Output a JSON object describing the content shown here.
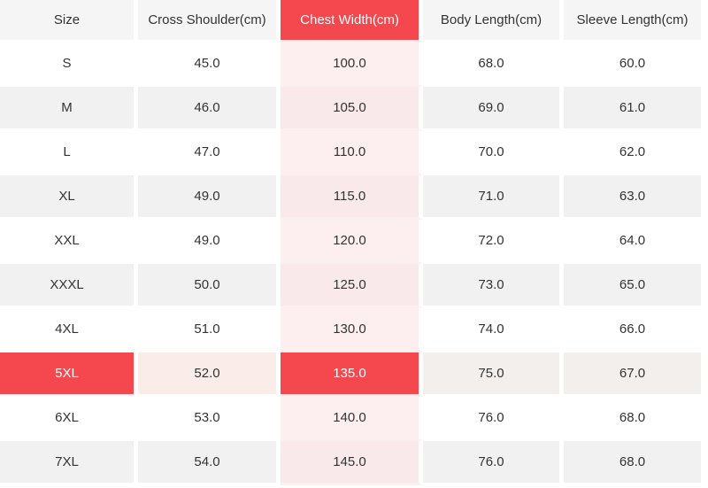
{
  "chart_data": {
    "type": "table",
    "columns": [
      "Size",
      "Cross Shoulder(cm)",
      "Chest Width(cm)",
      "Body Length(cm)",
      "Sleeve Length(cm)"
    ],
    "rows": [
      [
        "S",
        "45.0",
        "100.0",
        "68.0",
        "60.0"
      ],
      [
        "M",
        "46.0",
        "105.0",
        "69.0",
        "61.0"
      ],
      [
        "L",
        "47.0",
        "110.0",
        "70.0",
        "62.0"
      ],
      [
        "XL",
        "49.0",
        "115.0",
        "71.0",
        "63.0"
      ],
      [
        "XXL",
        "49.0",
        "120.0",
        "72.0",
        "64.0"
      ],
      [
        "XXXL",
        "50.0",
        "125.0",
        "73.0",
        "65.0"
      ],
      [
        "4XL",
        "51.0",
        "130.0",
        "74.0",
        "66.0"
      ],
      [
        "5XL",
        "52.0",
        "135.0",
        "75.0",
        "67.0"
      ],
      [
        "6XL",
        "53.0",
        "140.0",
        "76.0",
        "68.0"
      ],
      [
        "7XL",
        "54.0",
        "145.0",
        "76.0",
        "68.0"
      ]
    ],
    "highlighted_column": "Chest Width(cm)",
    "highlighted_column_index": 2,
    "highlighted_row": "5XL",
    "highlighted_row_index": 7
  },
  "colors": {
    "accent_red": "#f4474e",
    "header_bg": "#f5f5f6",
    "stripe_bg": "#f1f1f2",
    "pink_column_bg": "#fdeff0",
    "pink_column_stripe_bg": "#f9e9ea",
    "pink_row_gap": "#fbf0f0",
    "selected_row_warm_pink": "#f9ece9",
    "selected_row_warm_gray": "#f3efed",
    "text": "#333333",
    "selected_text": "#ffffff",
    "gap_white": "#ffffff"
  }
}
